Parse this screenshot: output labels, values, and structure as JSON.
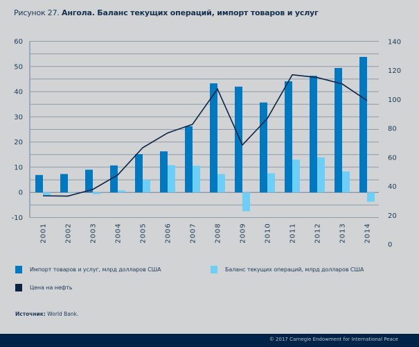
{
  "title": {
    "prefix": "Рисунок 27.",
    "main": "Ангола. Баланс текущих операций, импорт товаров и услуг"
  },
  "legend": [
    {
      "label": "Импорт товаров и услуг, млрд долларов США",
      "color": "#0079c1",
      "kind": "bar"
    },
    {
      "label": "Баланс текущих операций, млрд долларов США",
      "color": "#6dcff6",
      "kind": "bar"
    },
    {
      "label": "Цена на нефть",
      "color": "#0a2446",
      "kind": "line"
    }
  ],
  "source": {
    "label": "Источник:",
    "value": "World Bank."
  },
  "footer": {
    "copyright": "© 2017 Carnegie Endowment for International Peace"
  },
  "colors": {
    "imports": "#0079c1",
    "balance": "#6dcff6",
    "oil": "#0a2446",
    "grid": "#8c9cac",
    "background": "#d1d3d5",
    "footer": "#022348"
  },
  "chart_data": {
    "type": "bar",
    "title": "Рисунок 27. Ангола. Баланс текущих операций, импорт товаров и услуг",
    "categories": [
      "2001",
      "2002",
      "2003",
      "2004",
      "2005",
      "2006",
      "2007",
      "2008",
      "2009",
      "2010",
      "2011",
      "2012",
      "2013",
      "2014"
    ],
    "series": [
      {
        "name": "Импорт товаров и услуг, млрд долларов США",
        "type": "bar",
        "axis": "left",
        "values": [
          6.9,
          7.3,
          9.0,
          10.7,
          15.2,
          16.3,
          26.3,
          43.3,
          42.0,
          35.7,
          44.1,
          46.3,
          49.4,
          53.8
        ]
      },
      {
        "name": "Баланс текущих операций, млрд долларов США",
        "type": "bar",
        "axis": "left",
        "values": [
          -1.1,
          0.2,
          -0.7,
          0.8,
          5.0,
          10.8,
          10.6,
          7.3,
          -7.5,
          7.6,
          13.0,
          13.9,
          8.3,
          -3.7
        ]
      },
      {
        "name": "Цена на нефть",
        "type": "line",
        "axis": "right",
        "values": [
          33.5,
          33.3,
          37.9,
          47.9,
          66.7,
          76.9,
          82.9,
          107.3,
          68.6,
          86.9,
          117.1,
          115.2,
          110.8,
          99.3
        ]
      }
    ],
    "left_axis": {
      "ylim": [
        -10,
        60
      ],
      "ticks": [
        60,
        50,
        40,
        30,
        20,
        10,
        0,
        -10
      ],
      "minor_step": 5
    },
    "right_axis": {
      "ylim": [
        0,
        140
      ],
      "ticks": [
        140,
        120,
        100,
        80,
        60,
        40,
        20,
        0
      ]
    },
    "xlabel": "",
    "ylabel": "",
    "grid": true,
    "legend_position": "bottom"
  }
}
